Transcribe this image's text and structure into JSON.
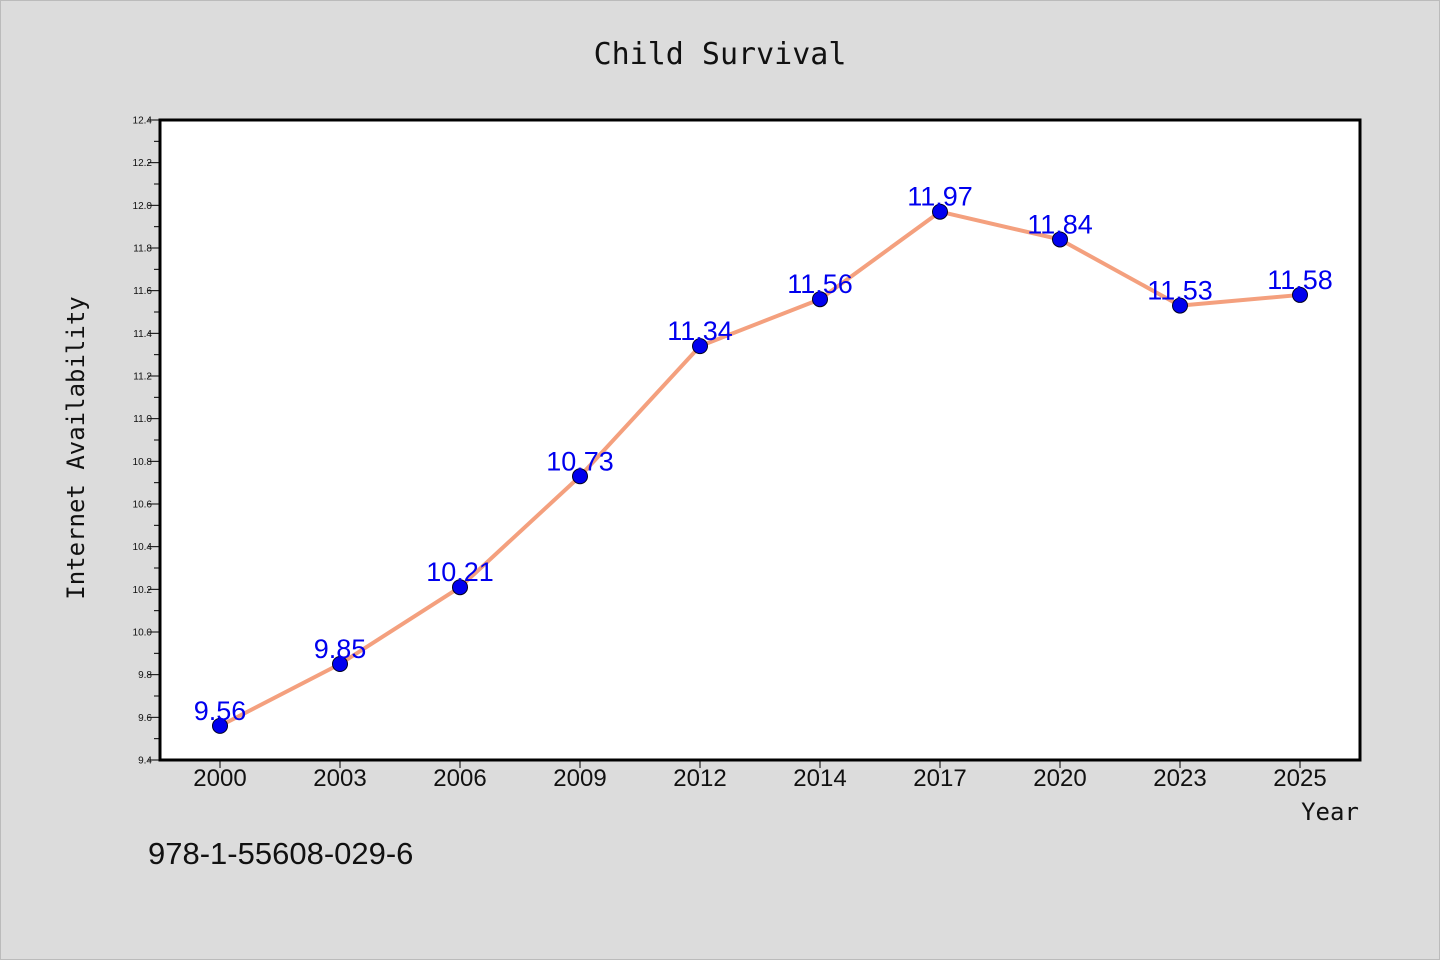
{
  "chart_data": {
    "type": "line",
    "title": "Child Survival",
    "xlabel": "Year",
    "ylabel": "Internet Availability",
    "categories": [
      "2000",
      "2003",
      "2006",
      "2009",
      "2012",
      "2014",
      "2017",
      "2020",
      "2023",
      "2025"
    ],
    "series": [
      {
        "values": [
          9.56,
          9.85,
          10.21,
          10.73,
          11.34,
          11.56,
          11.97,
          11.84,
          11.53,
          11.58
        ],
        "line_color": "#f4a07e",
        "marker_color": "#0000ee",
        "label_color": "#0000ee"
      }
    ],
    "y_ticks": [
      "9.4",
      "9.6",
      "9.8",
      "10.0",
      "10.2",
      "10.4",
      "10.6",
      "10.8",
      "11.0",
      "11.2",
      "11.4",
      "11.6",
      "11.8",
      "12.0",
      "12.2",
      "12.4"
    ],
    "ylim": [
      9.4,
      12.4
    ],
    "grid": false,
    "legend": "none",
    "background": "#dcdcdc",
    "plot_background": "#ffffff"
  },
  "footnote": "978-1-55608-029-6"
}
